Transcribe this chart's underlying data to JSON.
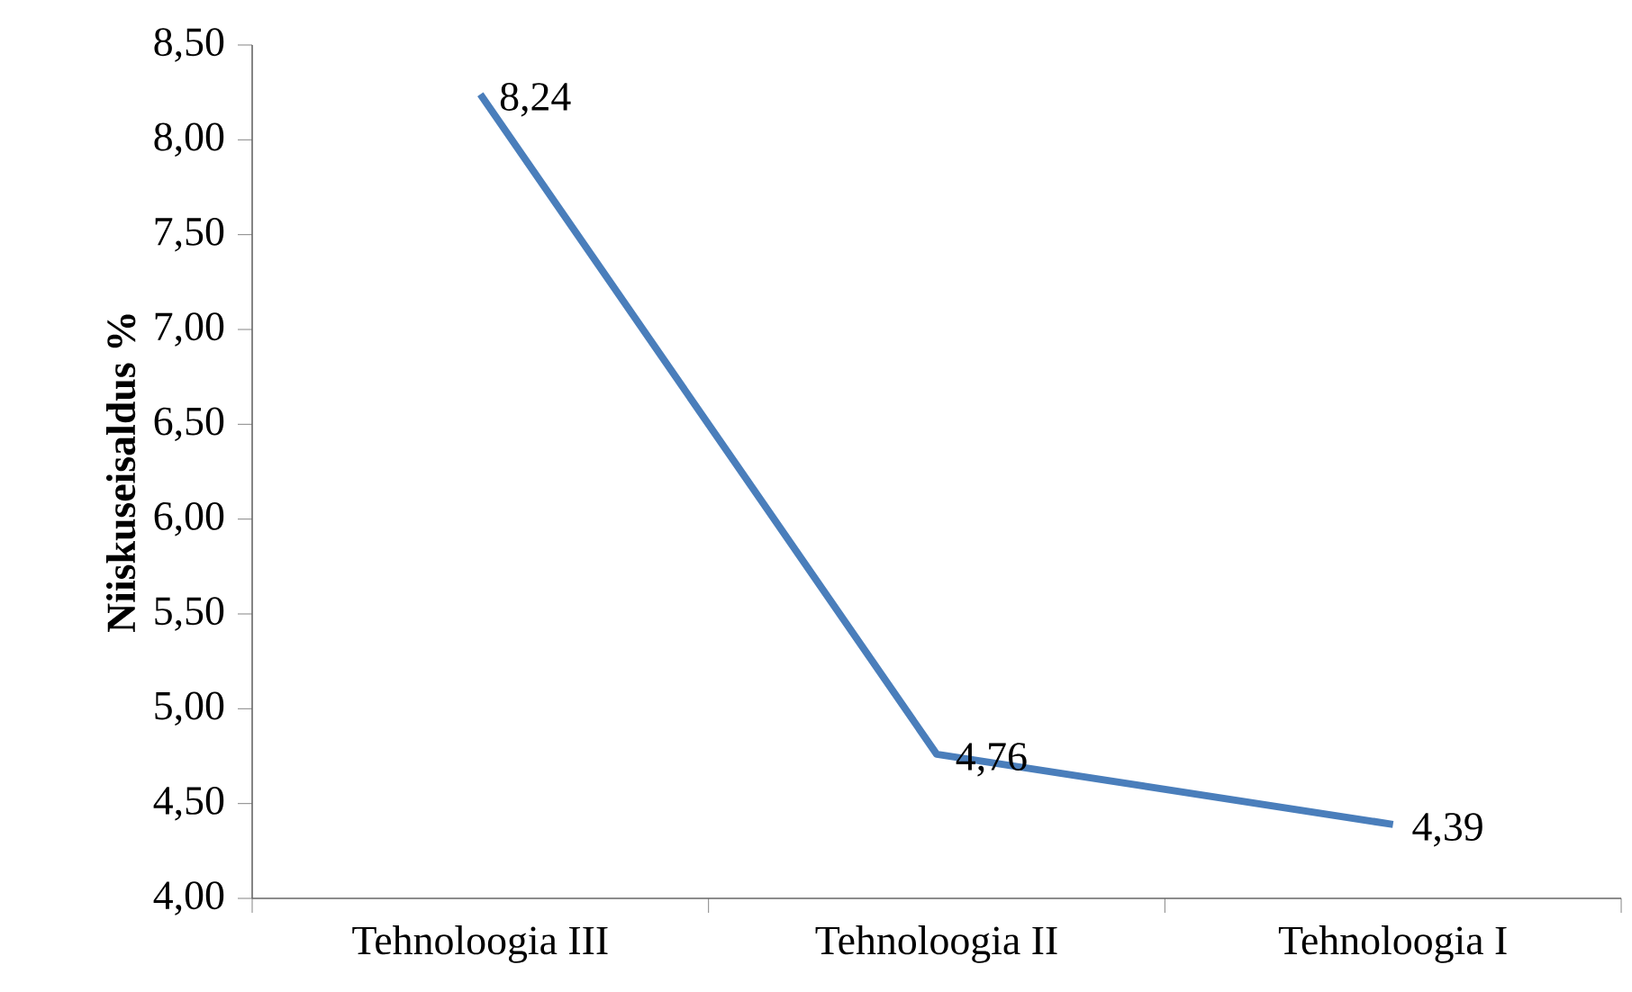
{
  "chart_data": {
    "type": "line",
    "ylabel": "Niiskuseisaldus %",
    "categories": [
      "Tehnoloogia III",
      "Tehnoloogia II",
      "Tehnoloogia I"
    ],
    "series": [
      {
        "color": "#4a7ebb",
        "values": [
          8.24,
          4.76,
          4.39
        ],
        "value_labels": [
          "8,24",
          "4,76",
          "4,39"
        ]
      }
    ],
    "ylim": [
      4.0,
      8.5
    ],
    "yticks": [
      {
        "value": 4.0,
        "label": "4,00"
      },
      {
        "value": 4.5,
        "label": "4,50"
      },
      {
        "value": 5.0,
        "label": "5,00"
      },
      {
        "value": 5.5,
        "label": "5,50"
      },
      {
        "value": 6.0,
        "label": "6,00"
      },
      {
        "value": 6.5,
        "label": "6,50"
      },
      {
        "value": 7.0,
        "label": "7,00"
      },
      {
        "value": 7.5,
        "label": "7,50"
      },
      {
        "value": 8.0,
        "label": "8,00"
      },
      {
        "value": 8.5,
        "label": "8,50"
      }
    ],
    "grid": false,
    "marker": "none",
    "line_style": "solid"
  }
}
